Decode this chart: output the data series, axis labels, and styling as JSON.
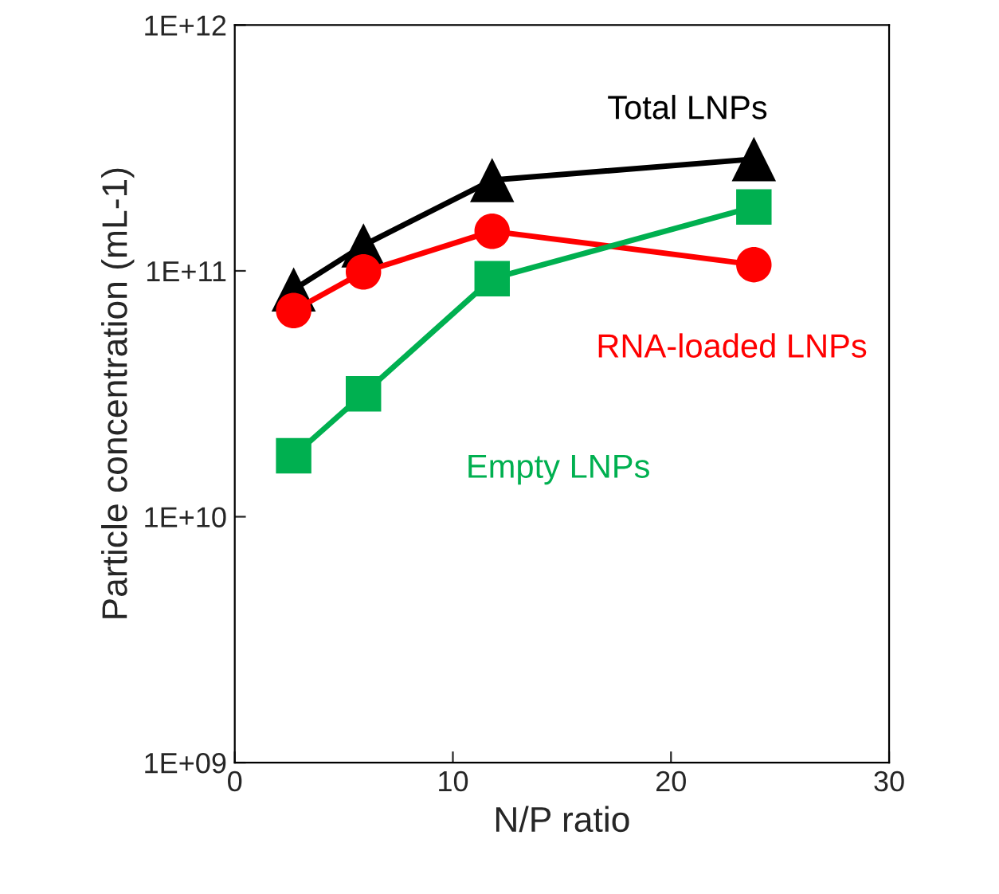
{
  "chart_data": {
    "type": "line",
    "xlabel": "N/P ratio",
    "ylabel": "Particle concentration (mL-1)",
    "log": "y",
    "grid": false,
    "legend": false,
    "line_style": "solid",
    "xlim": [
      0,
      30
    ],
    "xticks": [
      0,
      10,
      20,
      30
    ],
    "ylim": [
      1000000000.0,
      1000000000000.0
    ],
    "yticks": [
      {
        "value": 1000000000.0,
        "label": "1E+09"
      },
      {
        "value": 10000000000.0,
        "label": "1E+10"
      },
      {
        "value": 100000000000.0,
        "label": "1E+11"
      },
      {
        "value": 1000000000000.0,
        "label": "1E+12"
      }
    ],
    "series": [
      {
        "name": "Total LNPs",
        "color": "#000000",
        "marker": "triangle",
        "x": [
          2.7,
          5.9,
          11.8,
          23.8
        ],
        "values": [
          84000000000.0,
          127000000000.0,
          234000000000.0,
          285000000000.0
        ]
      },
      {
        "name": "RNA-loaded LNPs",
        "color": "#ff0000",
        "marker": "circle",
        "x": [
          2.7,
          5.9,
          11.8,
          23.8
        ],
        "values": [
          69000000000.0,
          99000000000.0,
          145000000000.0,
          106000000000.0
        ]
      },
      {
        "name": "Empty LNPs",
        "color": "#00b050",
        "marker": "square",
        "x": [
          2.7,
          5.9,
          11.8,
          23.8
        ],
        "values": [
          17700000000.0,
          31600000000.0,
          93000000000.0,
          182000000000.0
        ]
      }
    ]
  }
}
